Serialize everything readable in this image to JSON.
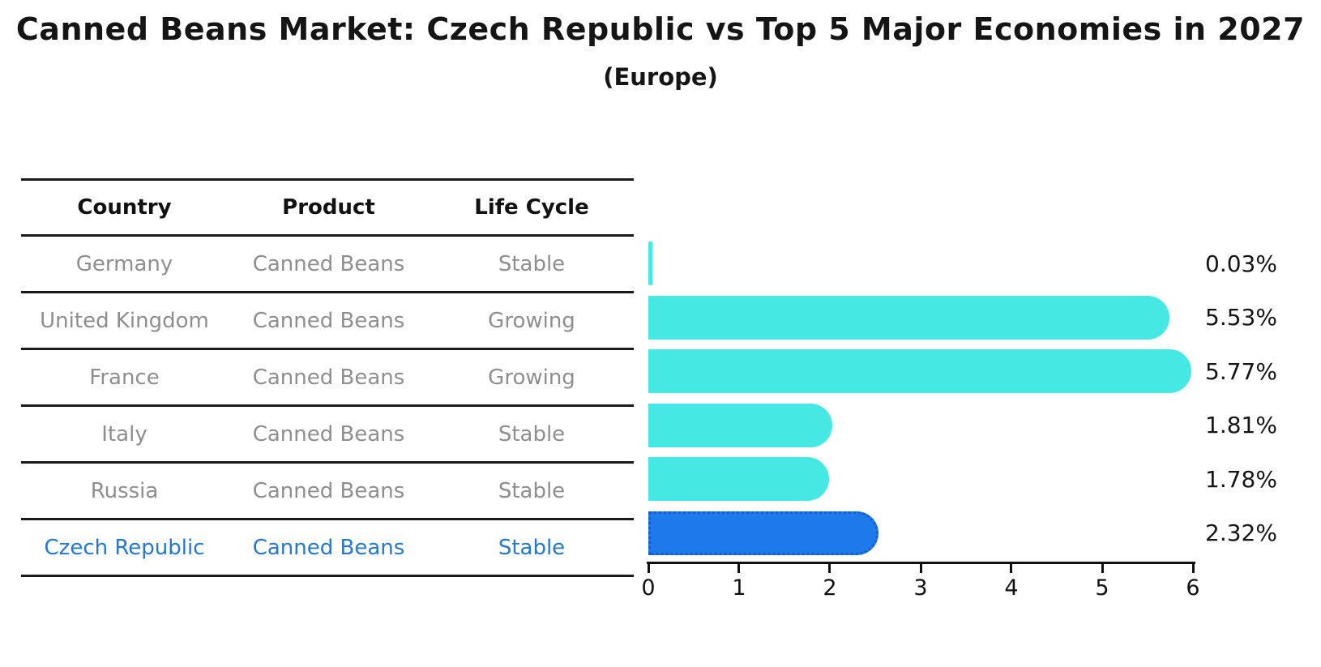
{
  "title": "Canned Beans Market: Czech Republic vs Top 5 Major Economies in 2027",
  "subtitle": "(Europe)",
  "table": {
    "columns": [
      "Country",
      "Product",
      "Life Cycle"
    ],
    "rows": [
      {
        "country": "Germany",
        "product": "Canned Beans",
        "life_cycle": "Stable",
        "value": 0.03,
        "value_label": "0.03%",
        "highlight": false
      },
      {
        "country": "United Kingdom",
        "product": "Canned Beans",
        "life_cycle": "Growing",
        "value": 5.53,
        "value_label": "5.53%",
        "highlight": false
      },
      {
        "country": "France",
        "product": "Canned Beans",
        "life_cycle": "Growing",
        "value": 5.77,
        "value_label": "5.77%",
        "highlight": false
      },
      {
        "country": "Italy",
        "product": "Canned Beans",
        "life_cycle": "Stable",
        "value": 1.81,
        "value_label": "1.81%",
        "highlight": false
      },
      {
        "country": "Russia",
        "product": "Canned Beans",
        "life_cycle": "Stable",
        "value": 1.78,
        "value_label": "1.78%",
        "highlight": false
      },
      {
        "country": "Czech Republic",
        "product": "Canned Beans",
        "life_cycle": "Stable",
        "value": 2.32,
        "value_label": "2.32%",
        "highlight": true
      }
    ]
  },
  "chart_data": {
    "type": "bar",
    "orientation": "horizontal",
    "title": "Canned Beans Market: Czech Republic vs Top 5 Major Economies in 2027",
    "subtitle": "(Europe)",
    "categories": [
      "Germany",
      "United Kingdom",
      "France",
      "Italy",
      "Russia",
      "Czech Republic"
    ],
    "values": [
      0.03,
      5.53,
      5.77,
      1.81,
      1.78,
      2.32
    ],
    "data_labels": [
      "0.03%",
      "5.53%",
      "5.77%",
      "1.81%",
      "1.78%",
      "2.32%"
    ],
    "xlabel": "",
    "ylabel": "",
    "xlim": [
      0,
      6
    ],
    "xticks": [
      0,
      1,
      2,
      3,
      4,
      5,
      6
    ],
    "grid": false,
    "legend": false,
    "highlight_category": "Czech Republic",
    "colors": {
      "bar_default": "#46e8e4",
      "bar_highlight": "#1e79ea",
      "bar_highlight_border": "#0d5fd2",
      "table_text_muted": "#8e8e8e",
      "table_text_highlight": "#2478d0",
      "axis": "#111111",
      "text": "#151515"
    }
  }
}
